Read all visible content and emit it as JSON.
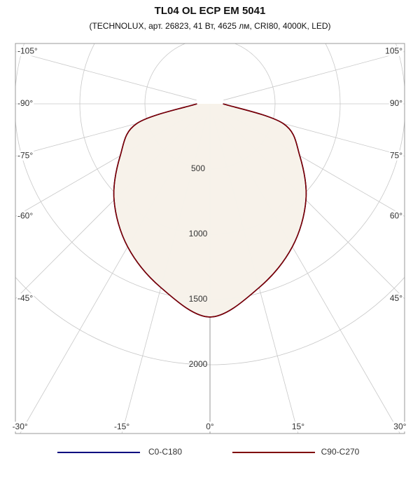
{
  "chart_data": {
    "type": "polar",
    "title": "TL04 OL ECP EM 5041",
    "subtitle": "(TECHNOLUX, арт. 26823, 41 Вт, 4625 лм, CRI80, 4000K, LED)",
    "angles": [
      -90,
      -75,
      -60,
      -45,
      -30,
      -15,
      0,
      15,
      30,
      45,
      60,
      75,
      90
    ],
    "series": [
      {
        "name": "C0-C180",
        "color": "#00007f",
        "values": [
          100,
          581,
          796,
          1042,
          1265,
          1458,
          1634,
          1458,
          1265,
          1042,
          796,
          581,
          100
        ]
      },
      {
        "name": "C90-C270",
        "color": "#7f0000",
        "values": [
          100,
          581,
          796,
          1042,
          1265,
          1458,
          1634,
          1458,
          1265,
          1042,
          796,
          581,
          100
        ]
      }
    ],
    "fill_color": "#f6f2ea",
    "rlim": [
      0,
      3000
    ],
    "rticks": [
      500,
      1000,
      1500,
      2000
    ],
    "angle_ticks": [
      {
        "value": -105,
        "label": "-105°"
      },
      {
        "value": -90,
        "label": "-90°"
      },
      {
        "value": -75,
        "label": "-75°"
      },
      {
        "value": -60,
        "label": "-60°"
      },
      {
        "value": -45,
        "label": "-45°"
      },
      {
        "value": -30,
        "label": "-30°"
      },
      {
        "value": -15,
        "label": "-15°"
      },
      {
        "value": 0,
        "label": "0°"
      },
      {
        "value": 15,
        "label": "15°"
      },
      {
        "value": 30,
        "label": "30°"
      },
      {
        "value": 45,
        "label": "45°"
      },
      {
        "value": 60,
        "label": "60°"
      },
      {
        "value": 75,
        "label": "75°"
      },
      {
        "value": 90,
        "label": "90°"
      },
      {
        "value": 105,
        "label": "105°"
      }
    ]
  }
}
